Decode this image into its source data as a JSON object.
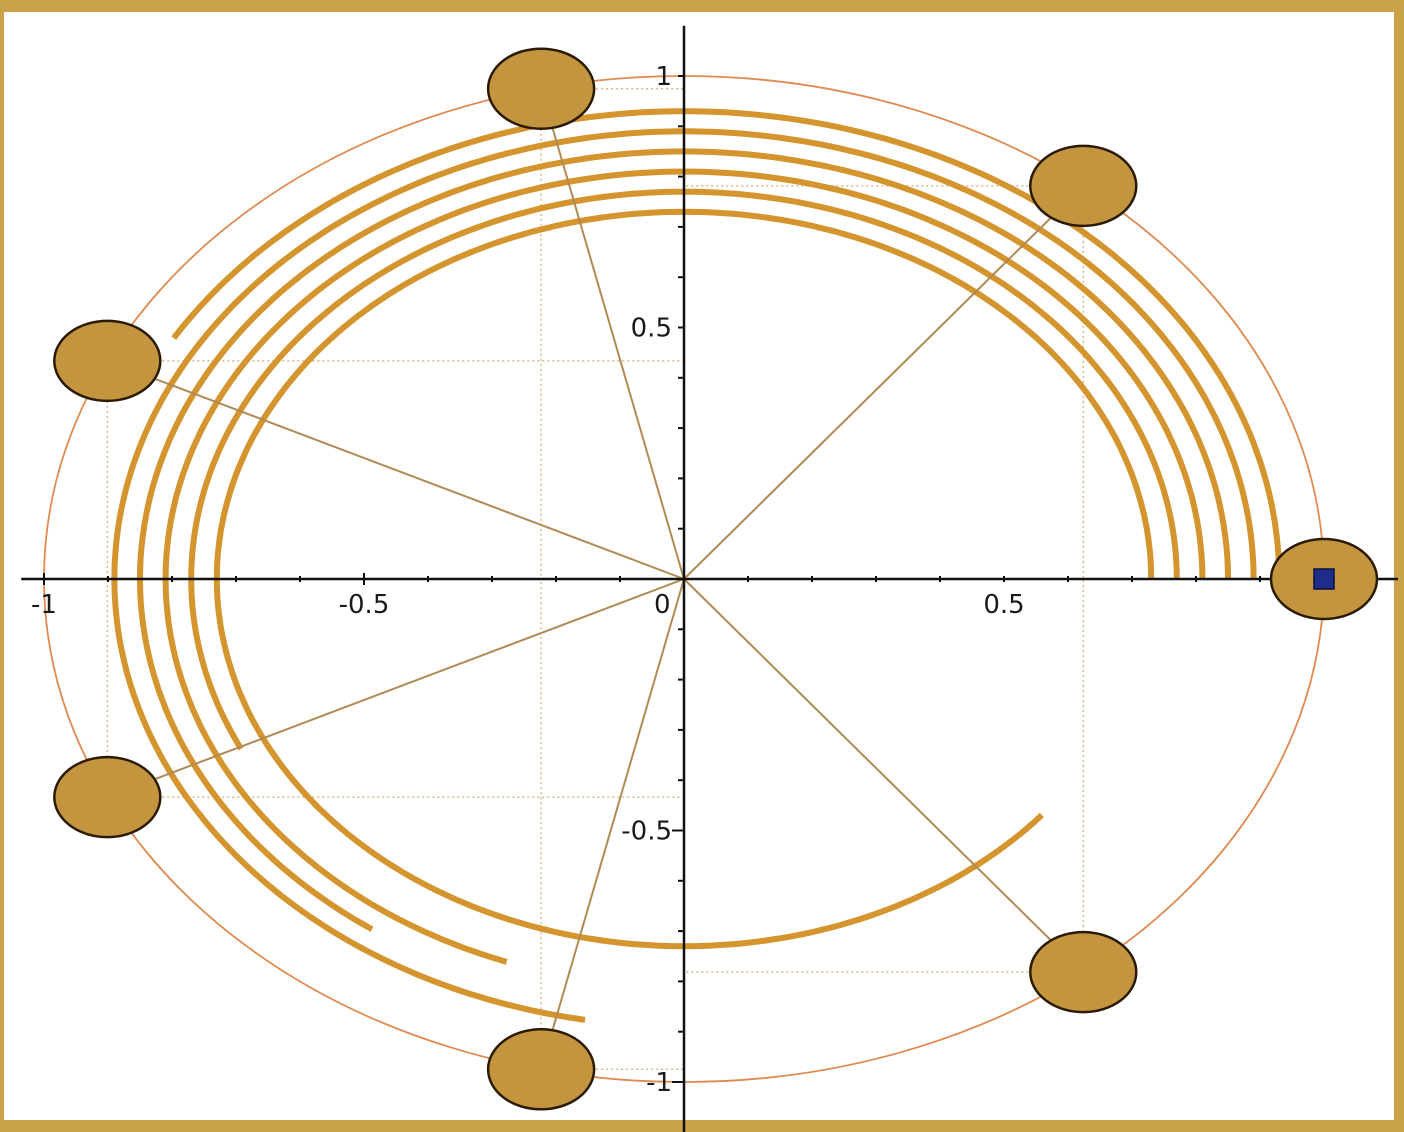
{
  "colors": {
    "frame": "#c9a24a",
    "unit_circle": "#e08a50",
    "spiral": "#d4942e",
    "spokes": "#b08a55",
    "guides": "#d8b88a",
    "disk_fill": "#c4953f",
    "disk_stroke": "#2a1a00",
    "marker_fill": "#1f2d8a",
    "axes": "#111111"
  },
  "chart_data": {
    "type": "diagram",
    "xlim": [
      -1.02,
      1.13
    ],
    "ylim": [
      -1.12,
      1.1
    ],
    "x_ticks": [
      {
        "value": -1,
        "label": "-1"
      },
      {
        "value": -0.5,
        "label": "-0.5"
      },
      {
        "value": 0,
        "label": "0"
      },
      {
        "value": 0.5,
        "label": "0.5"
      },
      {
        "value": 1,
        "label": "1"
      }
    ],
    "y_ticks": [
      {
        "value": 1,
        "label": "1"
      },
      {
        "value": 0.5,
        "label": "0.5"
      },
      {
        "value": -0.5,
        "label": "-0.5"
      },
      {
        "value": -1,
        "label": "-1"
      }
    ],
    "unit_circle": {
      "radius": 1
    },
    "spiral_arcs": [
      {
        "radius": 0.93,
        "start_deg": 0,
        "end_deg": 149
      },
      {
        "radius": 0.89,
        "start_deg": 0,
        "end_deg": 260
      },
      {
        "radius": 0.85,
        "start_deg": 0,
        "end_deg": 235
      },
      {
        "radius": 0.81,
        "start_deg": 0,
        "end_deg": 250
      },
      {
        "radius": 0.77,
        "start_deg": 0,
        "end_deg": 206
      },
      {
        "radius": 0.73,
        "start_deg": 0,
        "end_deg": 320
      }
    ],
    "disks": [
      {
        "angle_deg": 0,
        "radius": 1,
        "marker": true
      },
      {
        "angle_deg": 51.4,
        "radius": 1,
        "marker": false
      },
      {
        "angle_deg": 102.9,
        "radius": 1,
        "marker": false
      },
      {
        "angle_deg": 154.3,
        "radius": 1,
        "marker": false
      },
      {
        "angle_deg": 205.7,
        "radius": 1,
        "marker": false
      },
      {
        "angle_deg": 257.1,
        "radius": 1,
        "marker": false
      },
      {
        "angle_deg": 308.6,
        "radius": 1,
        "marker": false
      }
    ]
  }
}
